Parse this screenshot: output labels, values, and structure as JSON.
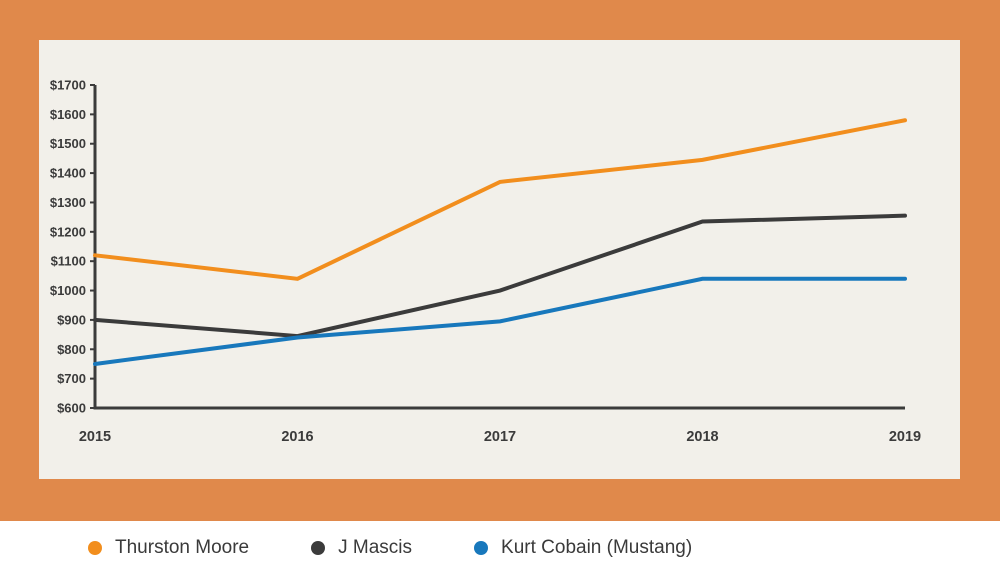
{
  "frame": {
    "border_color": "#e0894b",
    "panel_color": "#f2f0ea"
  },
  "chart_data": {
    "type": "line",
    "title": "",
    "x_labels": [
      "2015",
      "2016",
      "2017",
      "2018",
      "2019"
    ],
    "y_axis": {
      "min": 600,
      "max": 1700,
      "tick_step": 100,
      "tick_labels": [
        "$600",
        "$700",
        "$800",
        "$900",
        "$1000",
        "$1100",
        "$1200",
        "$1300",
        "$1400",
        "$1500",
        "$1600",
        "$1700"
      ]
    },
    "series": [
      {
        "name": "Thurston Moore",
        "color": "#f28e1d",
        "values": [
          1120,
          1040,
          1370,
          1445,
          1580
        ]
      },
      {
        "name": "J Mascis",
        "color": "#3b3b3b",
        "values": [
          900,
          845,
          1000,
          1235,
          1255
        ]
      },
      {
        "name": "Kurt Cobain (Mustang)",
        "color": "#1878bc",
        "values": [
          750,
          840,
          895,
          1040,
          1040
        ]
      }
    ],
    "grid": false,
    "legend_position": "bottom",
    "axis_color": "#3b3b3b",
    "tick_text_color": "#3b3b3b",
    "legend_text_color": "#3a3a3a"
  }
}
